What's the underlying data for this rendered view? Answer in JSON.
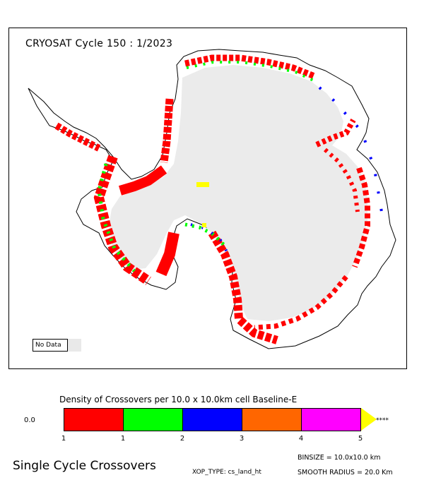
{
  "map": {
    "title": "CRYOSAT Cycle 150 : 1/2023",
    "no_data_label": "No Data",
    "no_data_color": "#e9e9e9",
    "land_color": "#ebebeb"
  },
  "legend": {
    "title": "Density of Crossovers per  10.0 x  10.0km cell Baseline-E",
    "zero_label": "0.0",
    "overflow_label": "****",
    "colors": [
      "#ff0000",
      "#00ff00",
      "#0000ff",
      "#ff6600",
      "#ff00ff"
    ],
    "overflow_color": "#ffff00",
    "ticks": [
      "1",
      "1",
      "2",
      "3",
      "4",
      "5"
    ]
  },
  "footer": {
    "title": "Single Cycle Crossovers",
    "binsize": "BINSIZE  =  10.0x10.0  km",
    "xop_type": "XOP_TYPE:  cs_land_ht",
    "smooth_radius": "SMOOTH  RADIUS  =   20.0  Km"
  }
}
